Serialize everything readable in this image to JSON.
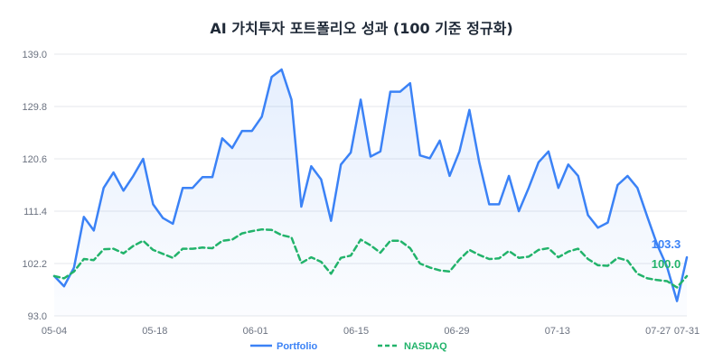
{
  "chart_data": {
    "type": "line",
    "title": "AI 가치투자 포트폴리오 성과 (100 기준 정규화)",
    "xlabel": "",
    "ylabel": "",
    "x_start": "2025-05-04",
    "x_end": "2025-07-31",
    "x_ticks": [
      "05-04",
      "05-18",
      "06-01",
      "06-15",
      "06-29",
      "07-13",
      "07-27",
      "07-31"
    ],
    "ylim": [
      93.0,
      139.0
    ],
    "y_ticks": [
      "93.0",
      "102.2",
      "111.4",
      "120.6",
      "129.8",
      "139.0"
    ],
    "grid": "horizontal",
    "legend": "bottom-center",
    "series": [
      {
        "name": "Portfolio",
        "color": "#3b82f6",
        "style": "solid",
        "fill": true,
        "end_label": "103.3",
        "values": [
          100.0,
          98.2,
          101.5,
          110.4,
          108.0,
          115.5,
          118.2,
          115.0,
          117.6,
          120.6,
          112.6,
          110.2,
          109.2,
          115.5,
          115.5,
          117.4,
          117.4,
          124.2,
          122.5,
          125.5,
          125.5,
          128.0,
          135.0,
          136.3,
          131.0,
          112.2,
          119.3,
          117.0,
          109.7,
          119.6,
          121.7,
          131.0,
          121.0,
          121.9,
          132.4,
          132.4,
          133.9,
          121.2,
          120.7,
          123.8,
          117.6,
          121.9,
          129.2,
          120.0,
          112.6,
          112.6,
          117.6,
          111.4,
          115.5,
          120.0,
          121.9,
          115.5,
          119.6,
          117.6,
          110.7,
          108.5,
          109.4,
          116.0,
          117.6,
          115.5,
          110.4,
          105.5,
          101.6,
          95.6,
          103.3
        ]
      },
      {
        "name": "NASDAQ",
        "color": "#22b36b",
        "style": "dashed",
        "fill": false,
        "end_label": "100.0",
        "values": [
          100.0,
          99.6,
          100.8,
          103.0,
          102.8,
          104.7,
          104.8,
          104.0,
          105.3,
          106.2,
          104.6,
          103.9,
          103.2,
          104.8,
          104.8,
          105.0,
          104.9,
          106.2,
          106.4,
          107.5,
          107.9,
          108.2,
          108.1,
          107.2,
          106.8,
          102.3,
          103.3,
          102.5,
          100.4,
          103.2,
          103.6,
          106.4,
          105.4,
          104.1,
          106.2,
          106.2,
          104.9,
          102.2,
          101.5,
          101.0,
          100.8,
          102.9,
          104.6,
          103.7,
          103.0,
          103.1,
          104.4,
          103.2,
          103.4,
          104.6,
          104.9,
          103.3,
          104.3,
          104.8,
          103.0,
          101.9,
          101.8,
          103.2,
          102.7,
          100.4,
          99.6,
          99.3,
          99.1,
          98.0,
          100.0
        ]
      }
    ]
  }
}
